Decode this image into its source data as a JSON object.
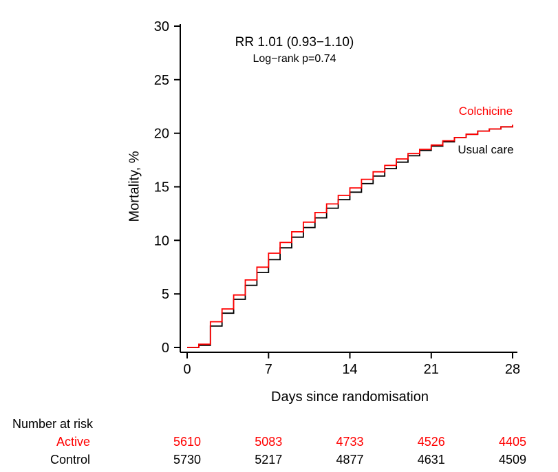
{
  "chart_data": {
    "type": "line",
    "subtype": "kaplan-meier-cumulative-incidence-step",
    "title": "",
    "annotation": [
      "RR 1.01 (0.93−1.10)",
      "Log−rank p=0.74"
    ],
    "ylabel": "Mortality, %",
    "xlabel": "Days since randomisation",
    "ylim": [
      0,
      30
    ],
    "xlim": [
      0,
      28
    ],
    "yticks": [
      0,
      5,
      10,
      15,
      20,
      25,
      30
    ],
    "xticks": [
      0,
      7,
      14,
      21,
      28
    ],
    "grid": false,
    "legend_position": "inline-right",
    "x": [
      0,
      1,
      2,
      3,
      4,
      5,
      6,
      7,
      8,
      9,
      10,
      11,
      12,
      13,
      14,
      15,
      16,
      17,
      18,
      19,
      20,
      21,
      22,
      23,
      24,
      25,
      26,
      27,
      28
    ],
    "series": [
      {
        "name": "Usual care",
        "color": "#000000",
        "values": [
          0,
          0.2,
          2.0,
          3.2,
          4.5,
          5.8,
          7.0,
          8.2,
          9.3,
          10.3,
          11.2,
          12.1,
          13.0,
          13.8,
          14.5,
          15.3,
          16.0,
          16.7,
          17.3,
          17.9,
          18.4,
          18.8,
          19.2,
          19.6,
          19.9,
          20.2,
          20.4,
          20.6,
          20.7
        ]
      },
      {
        "name": "Colchicine",
        "color": "#ff0000",
        "values": [
          0,
          0.3,
          2.4,
          3.6,
          4.9,
          6.3,
          7.5,
          8.8,
          9.8,
          10.8,
          11.7,
          12.6,
          13.4,
          14.2,
          14.9,
          15.7,
          16.4,
          17.0,
          17.6,
          18.1,
          18.5,
          18.9,
          19.3,
          19.6,
          19.9,
          20.2,
          20.4,
          20.6,
          20.8
        ]
      }
    ],
    "risk_table": {
      "title": "Number at risk",
      "days": [
        0,
        7,
        14,
        21,
        28
      ],
      "rows": [
        {
          "label": "Active",
          "color": "#ff0000",
          "values": [
            5610,
            5083,
            4733,
            4526,
            4405
          ]
        },
        {
          "label": "Control",
          "color": "#000000",
          "values": [
            5730,
            5217,
            4877,
            4631,
            4509
          ]
        }
      ]
    }
  }
}
